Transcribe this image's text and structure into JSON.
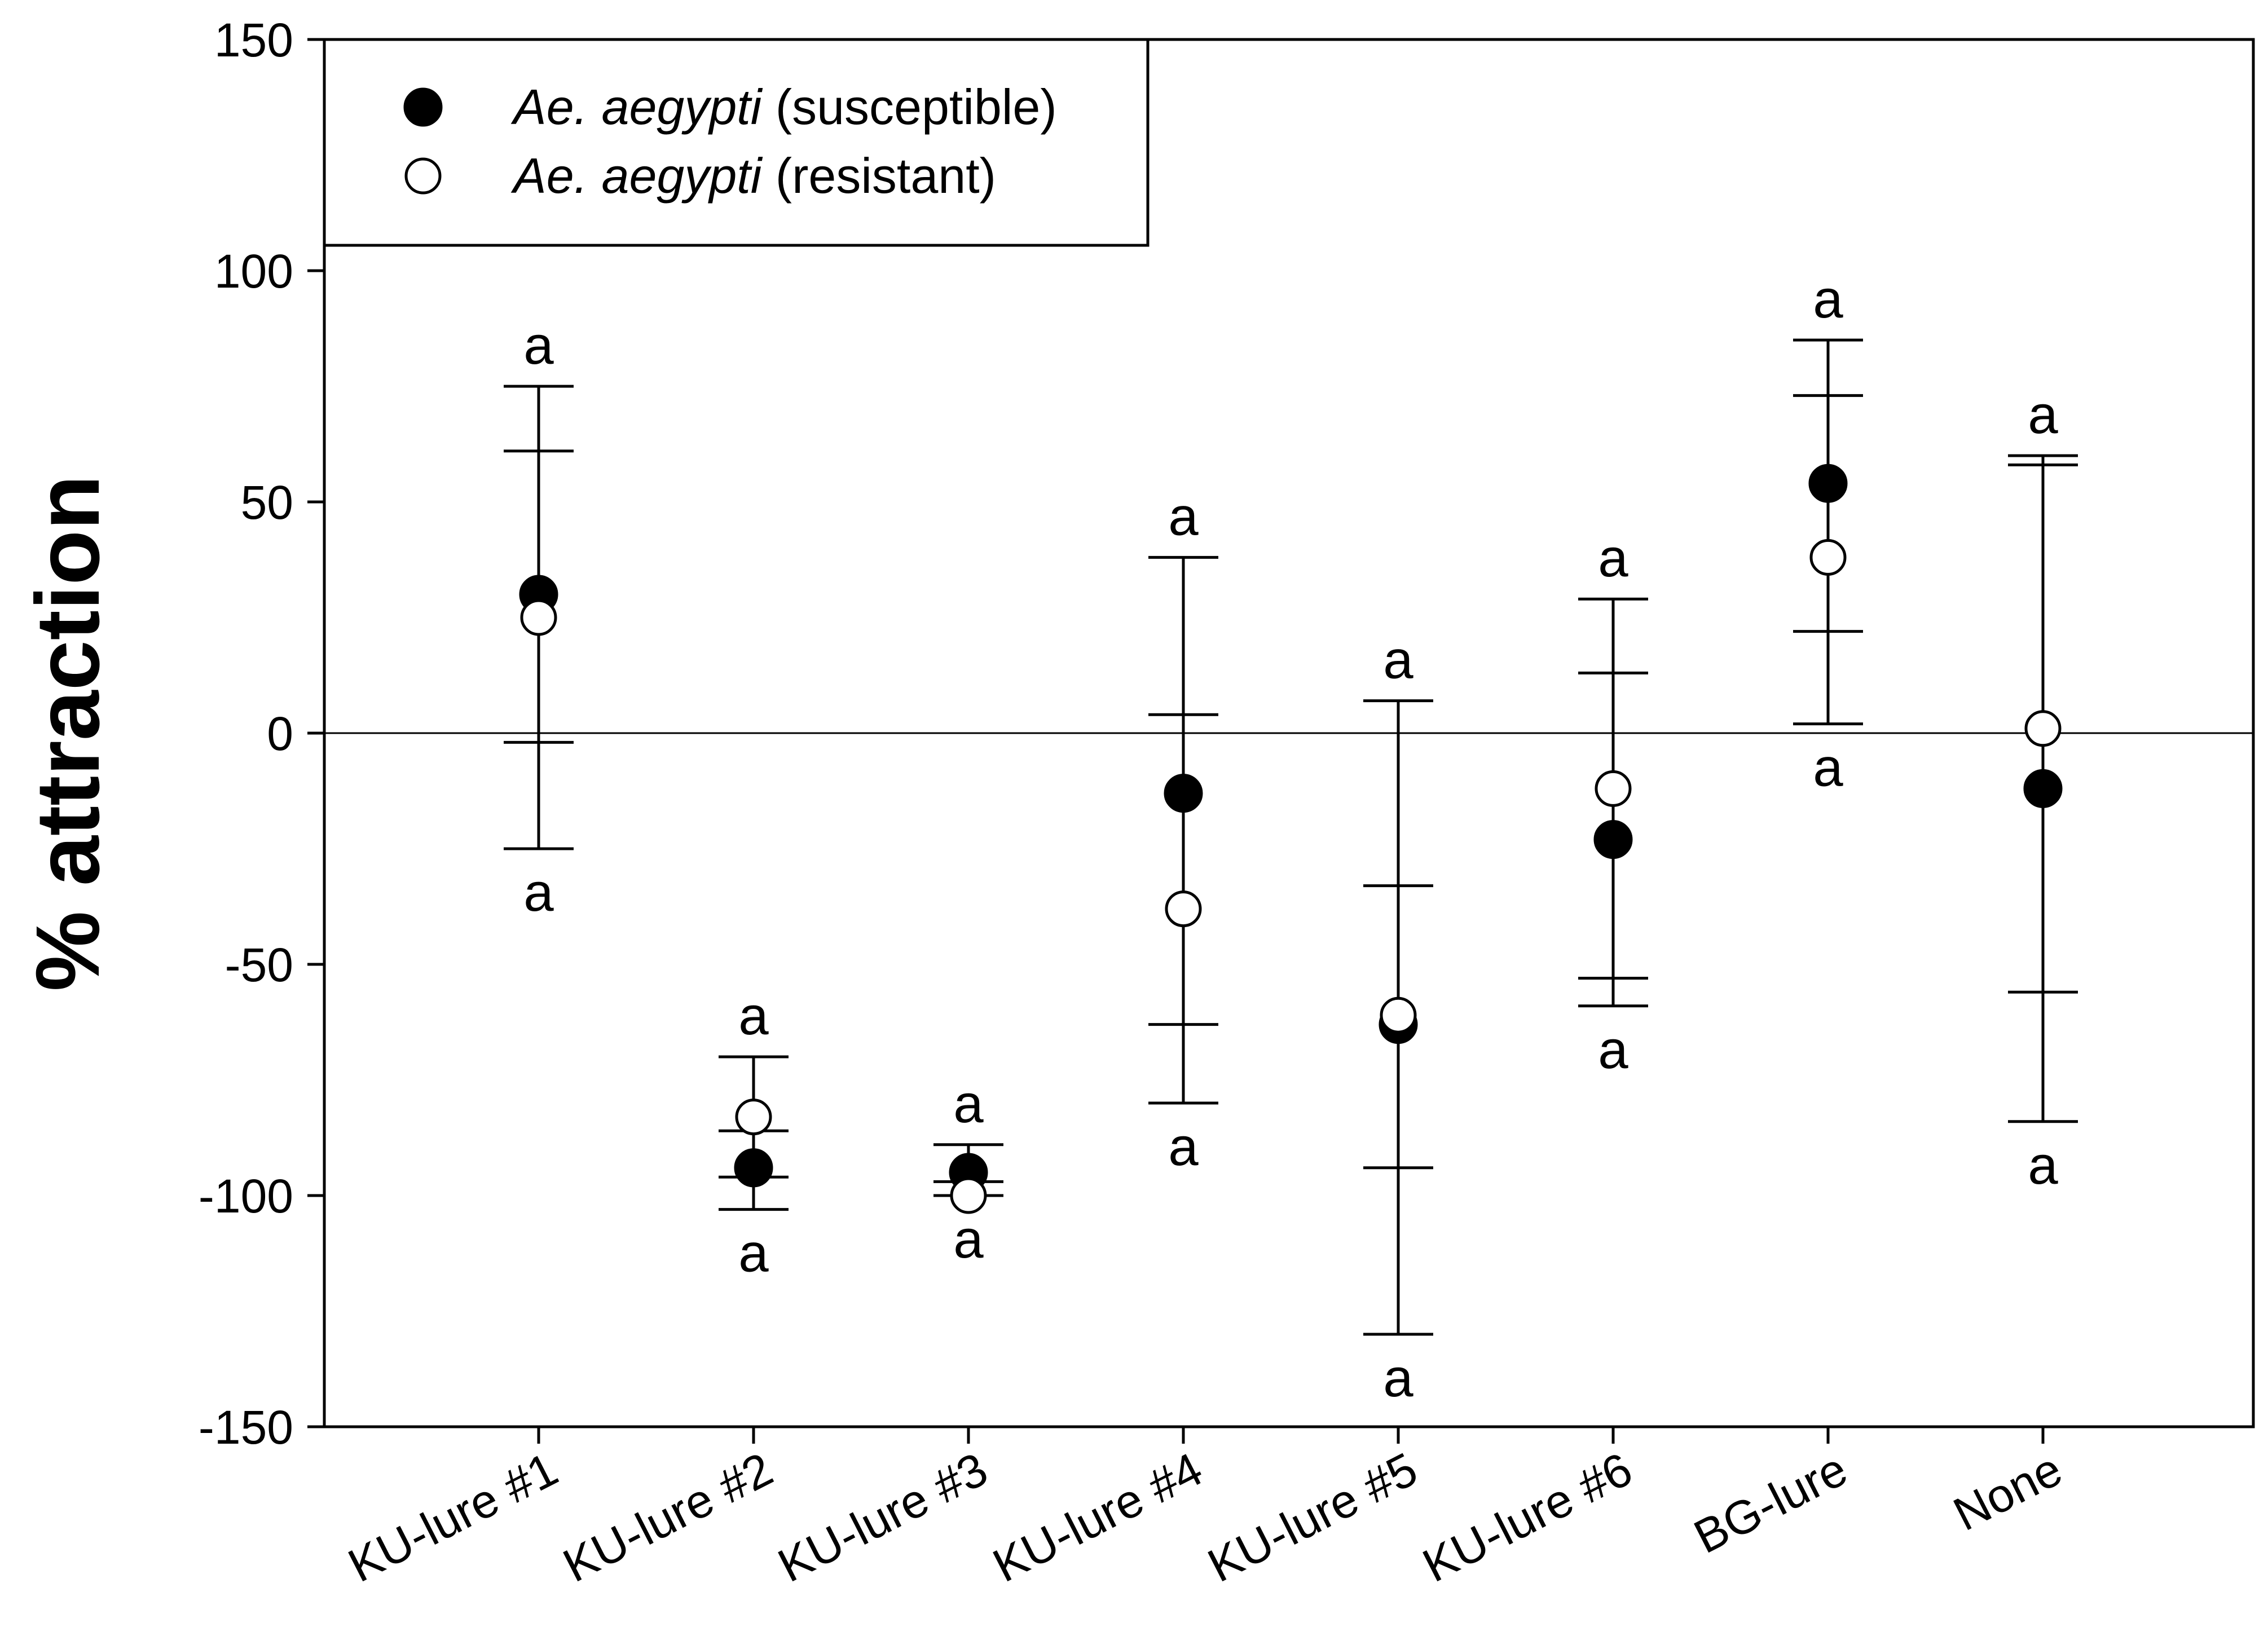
{
  "chart_data": {
    "type": "scatter",
    "title": "",
    "xlabel": "",
    "ylabel": "% attraction",
    "ylim": [
      -150,
      150
    ],
    "yticks": [
      "150",
      "100",
      "50",
      "0",
      "-50",
      "-100",
      "-150"
    ],
    "categories": [
      "KU-lure #1",
      "KU-lure #2",
      "KU-lure #3",
      "KU-lure #4",
      "KU-lure #5",
      "KU-lure #6",
      "BG-lure",
      "None"
    ],
    "reference_line": 0,
    "grid": false,
    "legend_position": "top-left",
    "series": [
      {
        "name_italic": "Ae. aegypti",
        "name_rest": " (susceptible)",
        "marker": "filled-circle",
        "values": [
          30,
          -94,
          -95,
          -13,
          -63,
          -23,
          54,
          -12
        ],
        "err_upper": [
          75,
          -70,
          -89,
          38,
          7,
          29,
          85,
          60
        ],
        "err_lower": [
          -25,
          -103,
          -97,
          -63,
          -94,
          -53,
          22,
          -84
        ],
        "sig_labels": [
          "a",
          "a",
          "a",
          "a",
          "a",
          "a",
          "a",
          "a"
        ]
      },
      {
        "name_italic": "Ae. aegypti",
        "name_rest": " (resistant)",
        "marker": "open-circle",
        "values": [
          25,
          -83,
          -100,
          -38,
          -61,
          -12,
          38,
          1
        ],
        "err_upper": [
          61,
          -86,
          -100,
          4,
          -33,
          13,
          73,
          58
        ],
        "err_lower": [
          -2,
          -96,
          -100,
          -80,
          -130,
          -59,
          2,
          -56
        ],
        "sig_labels": [
          "a",
          "a",
          "a",
          "a",
          "a",
          "a",
          "a",
          "a"
        ]
      }
    ]
  }
}
